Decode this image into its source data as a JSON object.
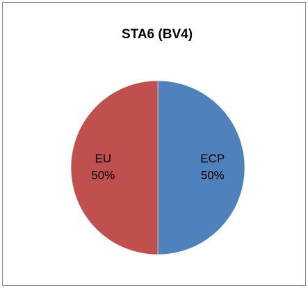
{
  "chart_data": {
    "type": "pie",
    "title": "STA6 (BV4)",
    "categories": [
      "ECP",
      "EU"
    ],
    "values": [
      50,
      50
    ],
    "value_labels": [
      "50%",
      "50%"
    ],
    "colors": [
      "#4f81bd",
      "#c0504d"
    ]
  }
}
